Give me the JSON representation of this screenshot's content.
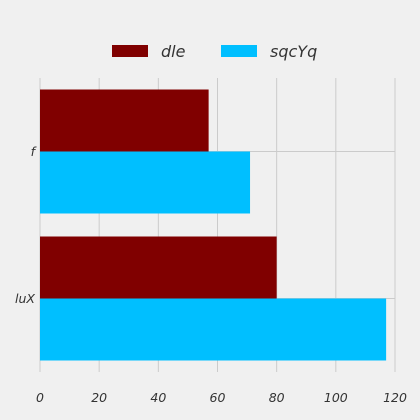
{
  "chart_data": {
    "type": "bar",
    "orientation": "horizontal",
    "categories": [
      "f",
      "luX"
    ],
    "series": [
      {
        "name": "dle",
        "values": [
          57,
          80
        ],
        "color": "#800000"
      },
      {
        "name": "sqcYq",
        "values": [
          71,
          117
        ],
        "color": "#00bfff"
      }
    ],
    "xlim": [
      0,
      120
    ],
    "xticks": [
      0,
      20,
      40,
      60,
      80,
      100,
      120
    ],
    "grid": true,
    "legend_position": "top-center",
    "background": "#f0f0f0",
    "grid_color": "#cbcbcb"
  }
}
